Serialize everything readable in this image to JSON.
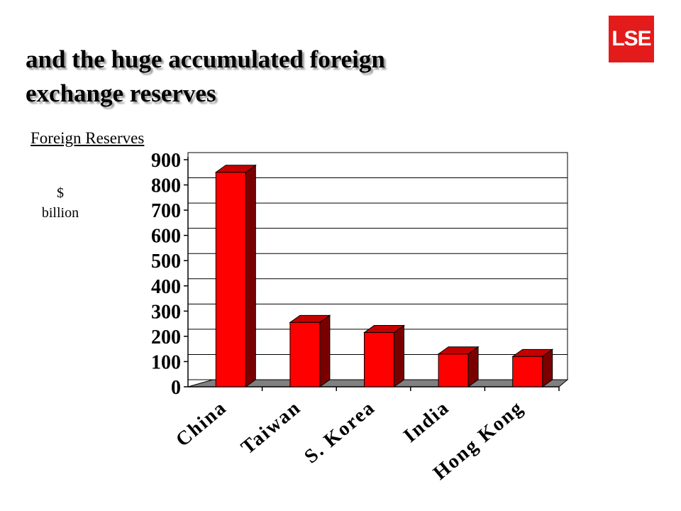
{
  "slide": {
    "logo_text": "LSE",
    "title_line1": "and the huge accumulated foreign",
    "title_line2": "exchange reserves",
    "subtitle": "Foreign Reserves",
    "unit_line1": "$",
    "unit_line2": "billion"
  },
  "chart_data": {
    "type": "bar",
    "style": "3d",
    "title": "Foreign Reserves",
    "ylabel": "$ billion",
    "categories": [
      "China",
      "Taiwan",
      "S. Korea",
      "India",
      "Hong Kong"
    ],
    "values": [
      850,
      255,
      215,
      130,
      120
    ],
    "ylim": [
      0,
      900
    ],
    "yticks": [
      0,
      100,
      200,
      300,
      400,
      500,
      600,
      700,
      800,
      900
    ],
    "grid": true,
    "bar_color": "#ff0000",
    "bar_side_color": "#7a0000",
    "floor_color": "#808080"
  }
}
